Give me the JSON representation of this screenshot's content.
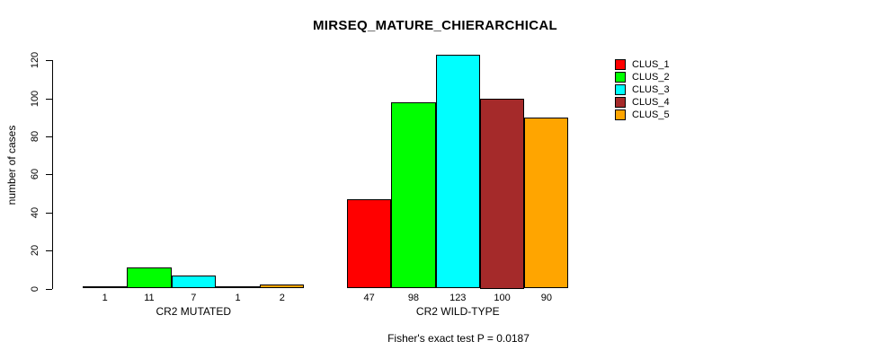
{
  "chart_data": {
    "type": "bar",
    "title": "MIRSEQ_MATURE_CHIERARCHICAL",
    "ylabel": "number of cases",
    "xlabel": "",
    "ylim": [
      0,
      130
    ],
    "yticks": [
      0,
      20,
      40,
      60,
      80,
      100,
      120
    ],
    "grid": false,
    "legend_position": "top-right",
    "categories": [
      "CR2 MUTATED",
      "CR2 WILD-TYPE"
    ],
    "series": [
      {
        "name": "CLUS_1",
        "color": "#ff0000",
        "values": [
          1,
          47
        ]
      },
      {
        "name": "CLUS_2",
        "color": "#00ff00",
        "values": [
          11,
          98
        ]
      },
      {
        "name": "CLUS_3",
        "color": "#00ffff",
        "values": [
          7,
          123
        ]
      },
      {
        "name": "CLUS_4",
        "color": "#a52a2a",
        "values": [
          1,
          100
        ]
      },
      {
        "name": "CLUS_5",
        "color": "#ffa500",
        "values": [
          2,
          90
        ]
      }
    ],
    "bar_value_labels": {
      "CR2 MUTATED": [
        1,
        11,
        7,
        1,
        2
      ],
      "CR2 WILD-TYPE": [
        47,
        98,
        123,
        100,
        90
      ]
    },
    "annotation": "Fisher's exact test P = 0.0187"
  }
}
